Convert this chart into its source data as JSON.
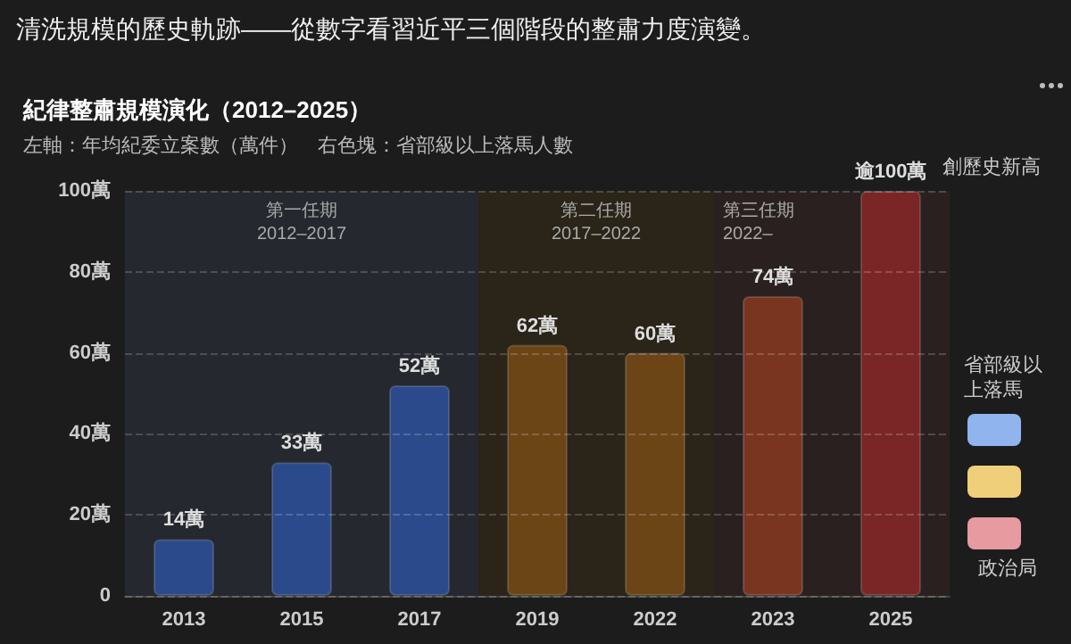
{
  "chart_data": {
    "type": "bar",
    "title": "清洗規模的歷史軌跡——從數字看習近平三個階段的整肅力度演變。",
    "subtitle": "紀律整肅規模演化（2012–2025）",
    "annotations": [
      "左軸：年均紀委立案數（萬件）　右色塊：省部級以上落馬人數",
      "創歷史新高",
      "省部級以上落馬",
      "政治局"
    ],
    "categories": [
      "2013",
      "2015",
      "2017",
      "2019",
      "2022",
      "2023",
      "2025"
    ],
    "values": [
      14,
      33,
      52,
      62,
      60,
      74,
      100
    ],
    "value_labels": [
      "14萬",
      "33萬",
      "52萬",
      "62萬",
      "60萬",
      "74萬",
      "逾100萬"
    ],
    "colors": [
      "#2b4a8c",
      "#2b4a8c",
      "#2b4a8c",
      "#6b4516",
      "#6b4516",
      "#7a3520",
      "#7a2626"
    ],
    "ylim": [
      0,
      100
    ],
    "yticks": [
      0,
      {
        "value": 20,
        "label": "20萬"
      },
      {
        "value": 40,
        "label": "40萬"
      },
      {
        "value": 60,
        "label": "60萬"
      },
      {
        "value": 80,
        "label": "80萬"
      },
      {
        "value": 100,
        "label": "100萬"
      }
    ],
    "grid": "y",
    "bands": [
      {
        "axis": "x",
        "from": "2013",
        "to": "2017",
        "label": "第一任期\n2012–2017",
        "color": "#25282e"
      },
      {
        "axis": "x",
        "from": "2019",
        "to": "2022",
        "label": "第二任期\n2017–2022",
        "color": "#2a2419"
      },
      {
        "axis": "x",
        "from": "2023",
        "to": "2025",
        "label": "第三任期\n2022–",
        "color": "#2b2020"
      }
    ]
  }
}
